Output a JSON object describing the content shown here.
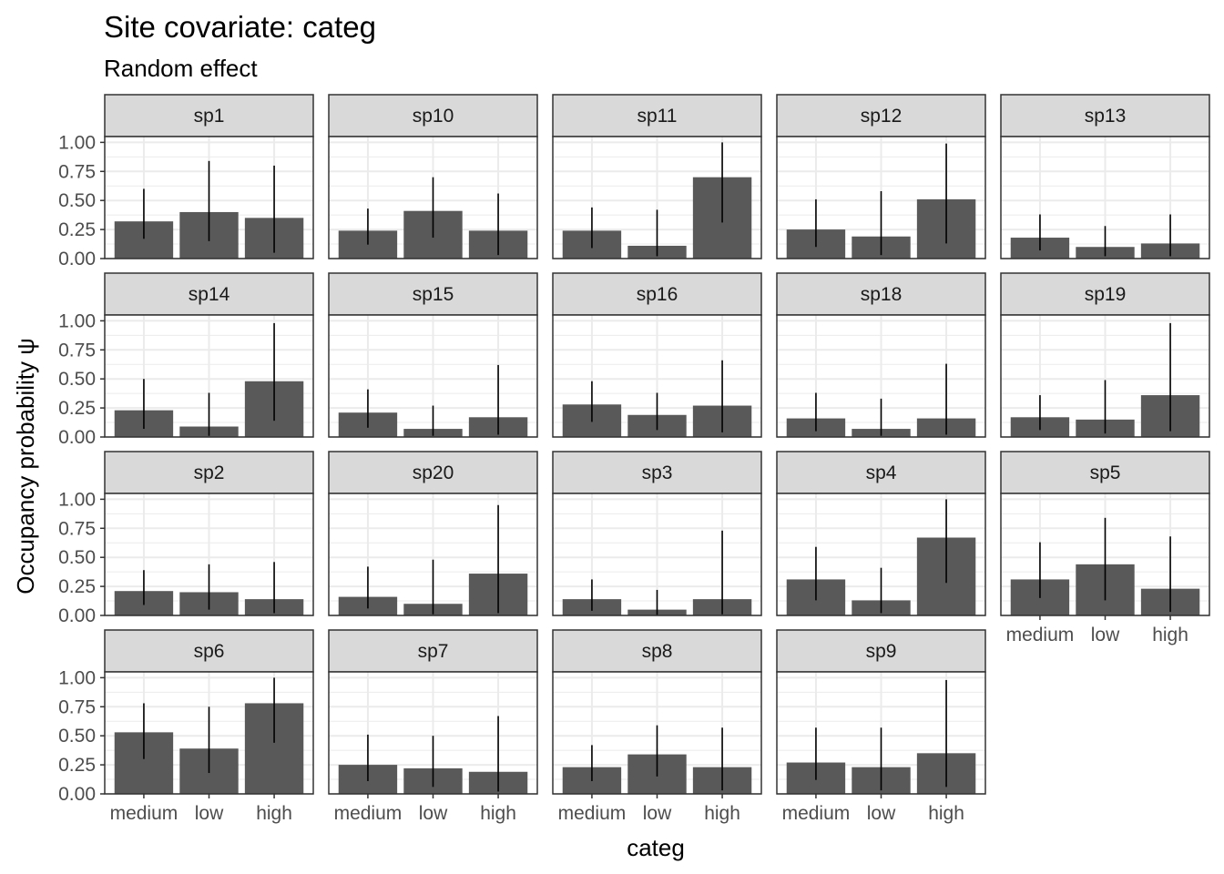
{
  "chart_data": {
    "type": "bar",
    "title": "Site covariate: categ",
    "subtitle": "Random effect",
    "xlabel": "categ",
    "ylabel": "Occupancy probability  ψ",
    "categories": [
      "medium",
      "low",
      "high"
    ],
    "ylim": [
      0,
      1.05
    ],
    "yticks": [
      0,
      0.25,
      0.5,
      0.75,
      1.0
    ],
    "ytick_labels": [
      "0.00",
      "0.25",
      "0.50",
      "0.75",
      "1.00"
    ],
    "grid": true,
    "bar_color": "#595959",
    "error_bar_color": "#000000",
    "panel_border_color": "#333333",
    "strip_fill_color": "#d9d9d9",
    "grid_color": "#ebebeb",
    "panels": [
      {
        "name": "sp1",
        "values": [
          0.32,
          0.4,
          0.35
        ],
        "lower": [
          0.17,
          0.15,
          0.05
        ],
        "upper": [
          0.6,
          0.84,
          0.8
        ]
      },
      {
        "name": "sp10",
        "values": [
          0.24,
          0.41,
          0.24
        ],
        "lower": [
          0.12,
          0.18,
          0.03
        ],
        "upper": [
          0.43,
          0.7,
          0.56
        ]
      },
      {
        "name": "sp11",
        "values": [
          0.24,
          0.11,
          0.7
        ],
        "lower": [
          0.09,
          0.02,
          0.31
        ],
        "upper": [
          0.44,
          0.42,
          1.0
        ]
      },
      {
        "name": "sp12",
        "values": [
          0.25,
          0.19,
          0.51
        ],
        "lower": [
          0.1,
          0.03,
          0.13
        ],
        "upper": [
          0.51,
          0.58,
          0.99
        ]
      },
      {
        "name": "sp13",
        "values": [
          0.18,
          0.1,
          0.13
        ],
        "lower": [
          0.07,
          0.02,
          0.02
        ],
        "upper": [
          0.38,
          0.28,
          0.38
        ]
      },
      {
        "name": "sp14",
        "values": [
          0.23,
          0.09,
          0.48
        ],
        "lower": [
          0.07,
          0.01,
          0.14
        ],
        "upper": [
          0.5,
          0.38,
          0.98
        ]
      },
      {
        "name": "sp15",
        "values": [
          0.21,
          0.07,
          0.17
        ],
        "lower": [
          0.08,
          0.01,
          0.02
        ],
        "upper": [
          0.41,
          0.27,
          0.62
        ]
      },
      {
        "name": "sp16",
        "values": [
          0.28,
          0.19,
          0.27
        ],
        "lower": [
          0.13,
          0.06,
          0.04
        ],
        "upper": [
          0.48,
          0.38,
          0.66
        ]
      },
      {
        "name": "sp18",
        "values": [
          0.16,
          0.07,
          0.16
        ],
        "lower": [
          0.05,
          0.01,
          0.02
        ],
        "upper": [
          0.38,
          0.33,
          0.63
        ]
      },
      {
        "name": "sp19",
        "values": [
          0.17,
          0.15,
          0.36
        ],
        "lower": [
          0.06,
          0.03,
          0.05
        ],
        "upper": [
          0.36,
          0.49,
          0.98
        ]
      },
      {
        "name": "sp2",
        "values": [
          0.21,
          0.2,
          0.14
        ],
        "lower": [
          0.09,
          0.05,
          0.02
        ],
        "upper": [
          0.39,
          0.44,
          0.46
        ]
      },
      {
        "name": "sp20",
        "values": [
          0.16,
          0.1,
          0.36
        ],
        "lower": [
          0.06,
          0.01,
          0.02
        ],
        "upper": [
          0.42,
          0.48,
          0.95
        ]
      },
      {
        "name": "sp3",
        "values": [
          0.14,
          0.05,
          0.14
        ],
        "lower": [
          0.04,
          0.0,
          0.01
        ],
        "upper": [
          0.31,
          0.22,
          0.73
        ]
      },
      {
        "name": "sp4",
        "values": [
          0.31,
          0.13,
          0.67
        ],
        "lower": [
          0.13,
          0.02,
          0.28
        ],
        "upper": [
          0.59,
          0.41,
          1.0
        ]
      },
      {
        "name": "sp5",
        "values": [
          0.31,
          0.44,
          0.23
        ],
        "lower": [
          0.15,
          0.13,
          0.03
        ],
        "upper": [
          0.63,
          0.84,
          0.68
        ]
      },
      {
        "name": "sp6",
        "values": [
          0.53,
          0.39,
          0.78
        ],
        "lower": [
          0.3,
          0.18,
          0.44
        ],
        "upper": [
          0.78,
          0.75,
          1.0
        ]
      },
      {
        "name": "sp7",
        "values": [
          0.25,
          0.22,
          0.19
        ],
        "lower": [
          0.11,
          0.06,
          0.02
        ],
        "upper": [
          0.51,
          0.5,
          0.67
        ]
      },
      {
        "name": "sp8",
        "values": [
          0.23,
          0.34,
          0.23
        ],
        "lower": [
          0.11,
          0.15,
          0.03
        ],
        "upper": [
          0.42,
          0.59,
          0.57
        ]
      },
      {
        "name": "sp9",
        "values": [
          0.27,
          0.23,
          0.35
        ],
        "lower": [
          0.12,
          0.03,
          0.06
        ],
        "upper": [
          0.57,
          0.57,
          0.98
        ]
      }
    ]
  }
}
